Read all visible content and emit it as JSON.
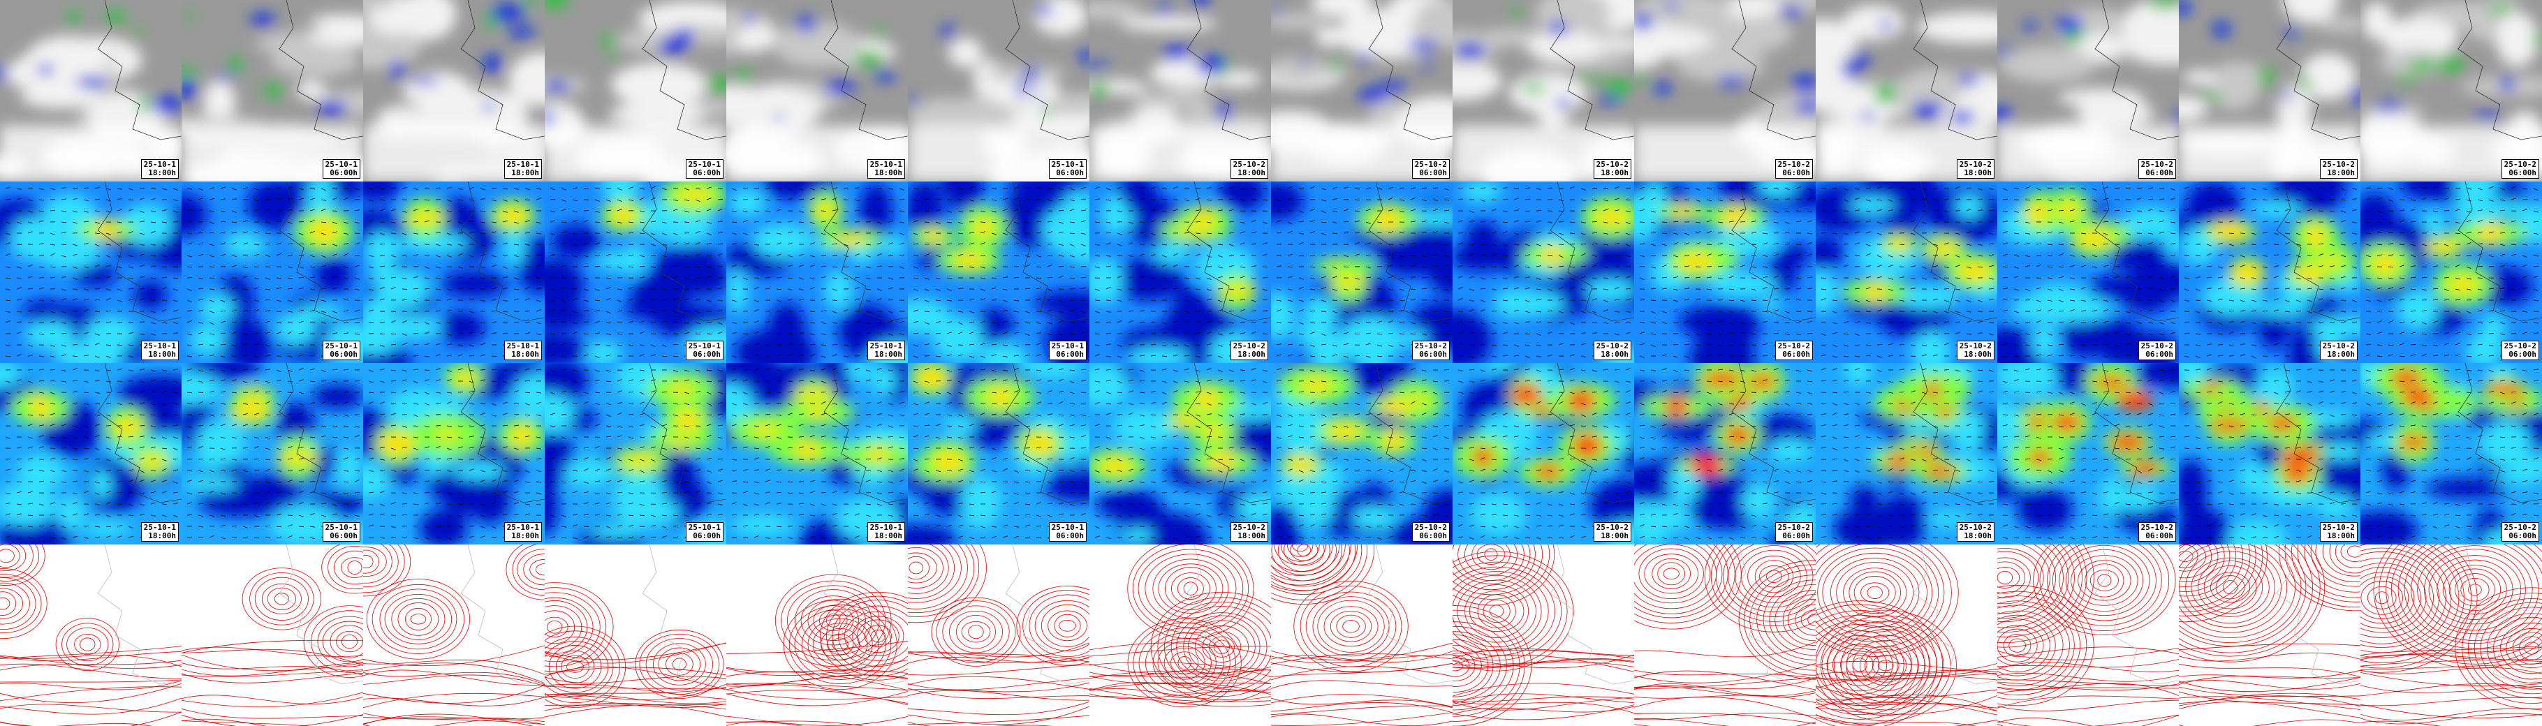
{
  "columns": [
    {
      "date": "25-10-1",
      "time": "18:00h"
    },
    {
      "date": "25-10-1",
      "time": "06:00h"
    },
    {
      "date": "25-10-1",
      "time": "18:00h"
    },
    {
      "date": "25-10-1",
      "time": "06:00h"
    },
    {
      "date": "25-10-1",
      "time": "18:00h"
    },
    {
      "date": "25-10-1",
      "time": "06:00h"
    },
    {
      "date": "25-10-2",
      "time": "18:00h"
    },
    {
      "date": "25-10-2",
      "time": "06:00h"
    },
    {
      "date": "25-10-2",
      "time": "18:00h"
    },
    {
      "date": "25-10-2",
      "time": "06:00h"
    },
    {
      "date": "25-10-2",
      "time": "18:00h"
    },
    {
      "date": "25-10-2",
      "time": "06:00h"
    },
    {
      "date": "25-10-2",
      "time": "18:00h"
    },
    {
      "date": "25-10-2",
      "time": "06:00h"
    }
  ]
}
